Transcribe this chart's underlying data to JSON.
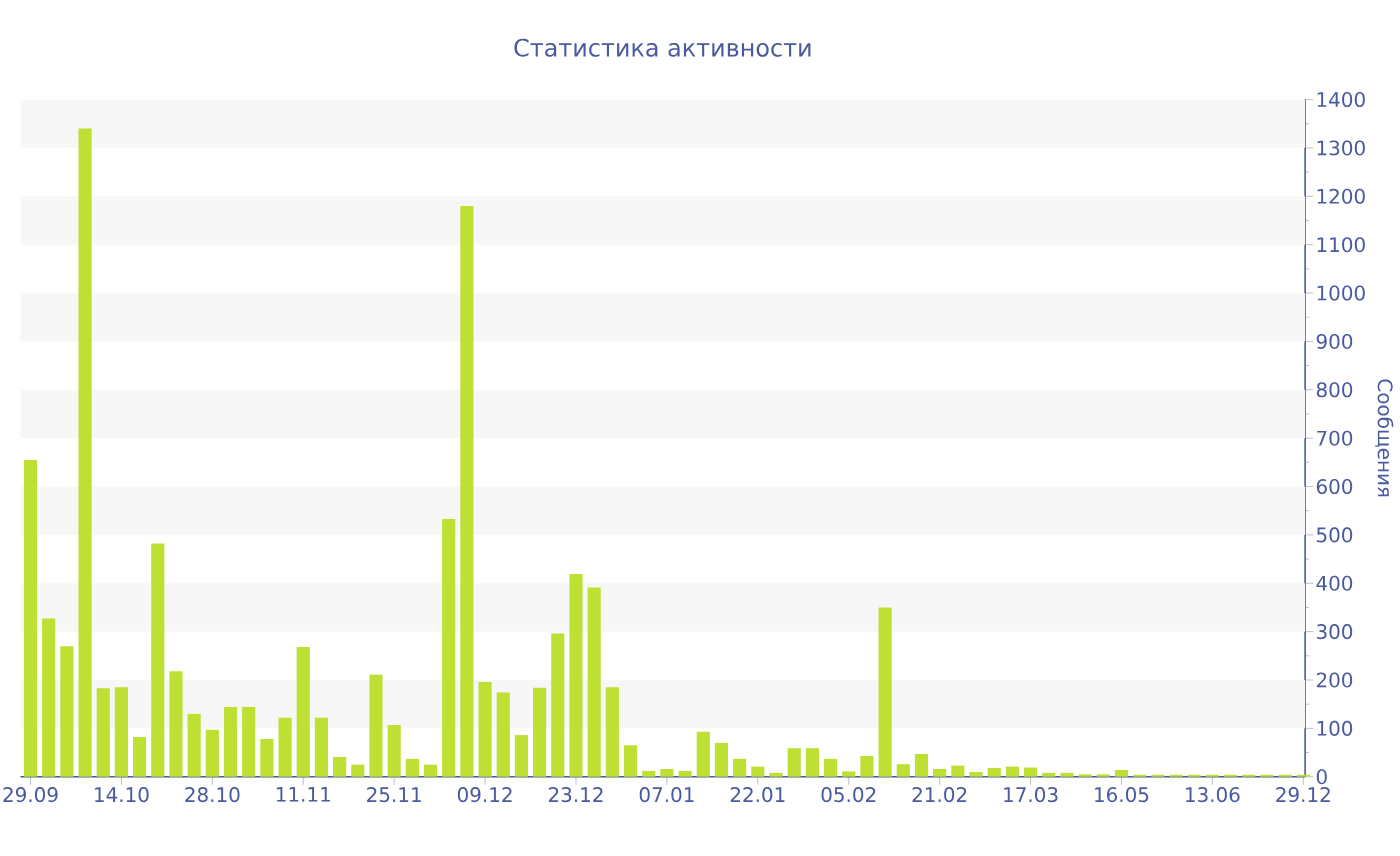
{
  "chart_data": {
    "type": "bar",
    "title": "Статистика активности",
    "ylabel": "Сообщения",
    "categories": [
      "29.09",
      null,
      null,
      null,
      null,
      "14.10",
      null,
      null,
      null,
      null,
      "28.10",
      null,
      null,
      null,
      null,
      "11.11",
      null,
      null,
      null,
      null,
      "25.11",
      null,
      null,
      null,
      null,
      "09.12",
      null,
      null,
      null,
      null,
      "23.12",
      null,
      null,
      null,
      null,
      "07.01",
      null,
      null,
      null,
      null,
      "22.01",
      null,
      null,
      null,
      null,
      "05.02",
      null,
      null,
      null,
      null,
      "21.02",
      null,
      null,
      null,
      null,
      "17.03",
      null,
      null,
      null,
      null,
      "16.05",
      null,
      null,
      null,
      null,
      "13.06",
      null,
      null,
      null,
      null,
      "29.12"
    ],
    "values": [
      655,
      327,
      270,
      1340,
      183,
      185,
      82,
      482,
      218,
      130,
      97,
      144,
      144,
      78,
      122,
      268,
      122,
      41,
      25,
      211,
      107,
      37,
      25,
      533,
      1180,
      196,
      174,
      86,
      184,
      296,
      419,
      391,
      185,
      65,
      12,
      16,
      12,
      93,
      70,
      37,
      21,
      8,
      59,
      59,
      37,
      11,
      43,
      350,
      26,
      47,
      16,
      23,
      10,
      18,
      21,
      19,
      8,
      8,
      5,
      5,
      14,
      4,
      4,
      4,
      4,
      4,
      4,
      4,
      4,
      4,
      4
    ],
    "color": "#bde032",
    "ylim": [
      0,
      1400
    ],
    "yticks": [
      0,
      100,
      200,
      300,
      400,
      500,
      600,
      700,
      800,
      900,
      1000,
      1100,
      1200,
      1300,
      1400
    ]
  }
}
